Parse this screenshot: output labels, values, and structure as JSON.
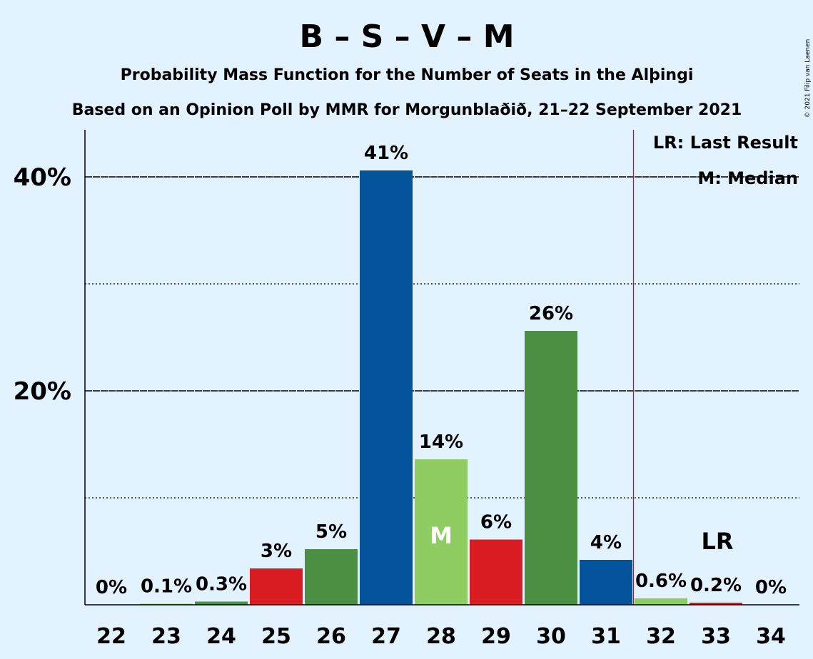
{
  "title": "B – S – V – M",
  "subtitle1": "Probability Mass Function for the Number of Seats in the Alþingi",
  "subtitle2": "Based on an Opinion Poll by MMR for Morgunblaðið, 21–22 September 2021",
  "copyright": "© 2021 Filip van Laenen",
  "legend": {
    "last_result": "LR: Last Result",
    "median": "M: Median"
  },
  "colors": {
    "background": "#e3f2ff",
    "blue": "#02539a",
    "light_green": "#8fcc61",
    "red": "#da1d22",
    "green": "#4a8f42",
    "last_result_line": "#c8102e"
  },
  "chart_data": {
    "type": "bar",
    "categories": [
      "22",
      "23",
      "24",
      "25",
      "26",
      "27",
      "28",
      "29",
      "30",
      "31",
      "32",
      "33",
      "34"
    ],
    "values": [
      0,
      0.1,
      0.3,
      3.4,
      5.2,
      40.6,
      13.6,
      6.1,
      25.6,
      4.2,
      0.6,
      0.2,
      0
    ],
    "labels": [
      "0%",
      "0.1%",
      "0.3%",
      "3%",
      "5%",
      "41%",
      "14%",
      "6%",
      "26%",
      "4%",
      "0.6%",
      "0.2%",
      "0%"
    ],
    "bar_colors": [
      "light_green",
      "light_green",
      "green",
      "red",
      "green",
      "blue",
      "light_green",
      "red",
      "green",
      "blue",
      "light_green",
      "red",
      "light_green"
    ],
    "ylim": [
      0,
      44
    ],
    "yticks": [
      {
        "value": 20,
        "label": "20%"
      },
      {
        "value": 40,
        "label": "40%"
      }
    ],
    "minor_gridlines": [
      10,
      30
    ],
    "median_seat": "28",
    "median_marker": "M",
    "last_result_seat": "33",
    "last_result_marker": "LR",
    "last_result_line_after": "31",
    "xlabel": "",
    "ylabel": ""
  }
}
